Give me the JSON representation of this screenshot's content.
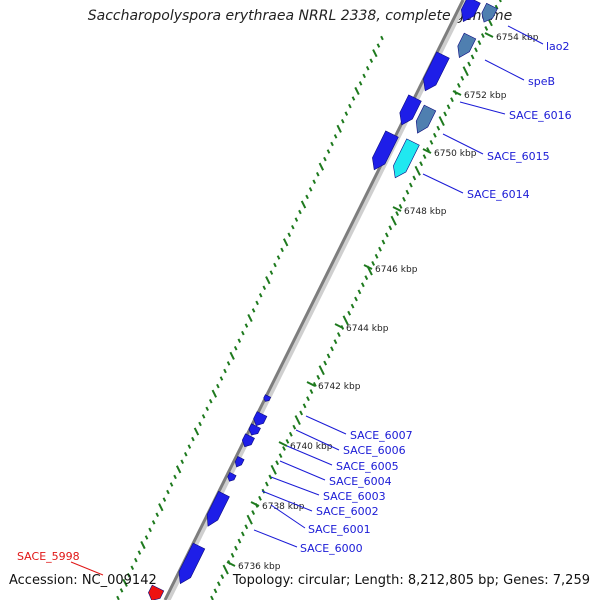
{
  "title": "Saccharopolyspora erythraea NRRL 2338, complete genome",
  "accession": "Accession: NC_009142",
  "summary": "Topology: circular; Length: 8,212,805 bp; Genes: 7,259",
  "colors": {
    "backbone": "#8a8a8a",
    "gene_forward": "#1e1ee8",
    "gene_steel": "#4f7fb0",
    "gene_cyan": "#20e8f0",
    "gene_red": "#ee1111",
    "label_blue": "#1b1bd6",
    "label_red": "#e01616",
    "gc_ticks": "#1e7a1e"
  },
  "scale_labels": [
    "6754 kbp",
    "6752 kbp",
    "6750 kbp",
    "6748 kbp",
    "6746 kbp",
    "6744 kbp",
    "6742 kbp",
    "6740 kbp",
    "6738 kbp",
    "6736 kbp"
  ],
  "gene_labels": [
    {
      "text": "lao2",
      "color": "blue"
    },
    {
      "text": "speB",
      "color": "blue"
    },
    {
      "text": "SACE_6016",
      "color": "blue"
    },
    {
      "text": "SACE_6015",
      "color": "blue"
    },
    {
      "text": "SACE_6014",
      "color": "blue"
    },
    {
      "text": "SACE_6007",
      "color": "blue"
    },
    {
      "text": "SACE_6006",
      "color": "blue"
    },
    {
      "text": "SACE_6005",
      "color": "blue"
    },
    {
      "text": "SACE_6004",
      "color": "blue"
    },
    {
      "text": "SACE_6003",
      "color": "blue"
    },
    {
      "text": "SACE_6002",
      "color": "blue"
    },
    {
      "text": "SACE_6001",
      "color": "blue"
    },
    {
      "text": "SACE_6000",
      "color": "blue"
    },
    {
      "text": "SACE_5998",
      "color": "red"
    }
  ]
}
